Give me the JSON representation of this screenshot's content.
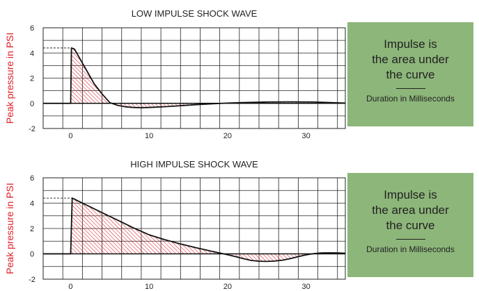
{
  "chart_data": [
    {
      "type": "area",
      "title": "LOW IMPULSE SHOCK WAVE",
      "ylabel": "Peak pressure in PSI",
      "xlabel": "",
      "xlim": [
        -3.5,
        35
      ],
      "ylim": [
        -2,
        6
      ],
      "x_ticks": [
        0,
        10,
        20,
        30
      ],
      "y_ticks": [
        6,
        4,
        2,
        0,
        -2
      ],
      "grid": true,
      "peak_reference": 4.4,
      "series": [
        {
          "x": [
            -3.5,
            0,
            0.1,
            0.5,
            1,
            2,
            3,
            4,
            5,
            6,
            7,
            8,
            9,
            10,
            11,
            12,
            14,
            16,
            18,
            20,
            22,
            25,
            28,
            31,
            33,
            35
          ],
          "y": [
            0,
            0,
            4.4,
            4.3,
            3.75,
            2.65,
            1.55,
            0.75,
            0.05,
            -0.17,
            -0.28,
            -0.33,
            -0.35,
            -0.33,
            -0.3,
            -0.27,
            -0.19,
            -0.11,
            -0.04,
            0.02,
            0.06,
            0.1,
            0.12,
            0.1,
            0.06,
            0.02
          ]
        }
      ]
    },
    {
      "type": "area",
      "title": "HIGH IMPULSE SHOCK WAVE",
      "ylabel": "Peak pressure in PSI",
      "xlabel": "",
      "xlim": [
        -3.5,
        35
      ],
      "ylim": [
        -2,
        6
      ],
      "x_ticks": [
        0,
        10,
        20,
        30
      ],
      "y_ticks": [
        6,
        4,
        2,
        0,
        -2
      ],
      "grid": true,
      "peak_reference": 4.4,
      "series": [
        {
          "x": [
            -3.5,
            0,
            0.2,
            2,
            4,
            6,
            8,
            10,
            12,
            14,
            16,
            18,
            19,
            20,
            21,
            22,
            23,
            24,
            25,
            26,
            27,
            28,
            29,
            30,
            31,
            32,
            33,
            34,
            35
          ],
          "y": [
            0,
            0,
            4.4,
            3.85,
            3.25,
            2.65,
            2.05,
            1.5,
            1.12,
            0.78,
            0.48,
            0.2,
            0.07,
            -0.07,
            -0.22,
            -0.38,
            -0.52,
            -0.58,
            -0.6,
            -0.57,
            -0.5,
            -0.38,
            -0.22,
            -0.08,
            0.02,
            0.07,
            0.08,
            0.07,
            0.05
          ]
        }
      ]
    }
  ],
  "boxes": [
    {
      "lines": [
        "Impulse is",
        "the area under",
        "the curve"
      ],
      "caption": "Duration in Milliseconds",
      "color": "#8db67a"
    },
    {
      "lines": [
        "Impulse is",
        "the area under",
        "the curve"
      ],
      "caption": "Duration in Milliseconds",
      "color": "#8db67a"
    }
  ],
  "colors": {
    "ylabel": "#e0202a",
    "hatch": "#d8202a",
    "curve": "#111111",
    "grid": "#222222"
  }
}
